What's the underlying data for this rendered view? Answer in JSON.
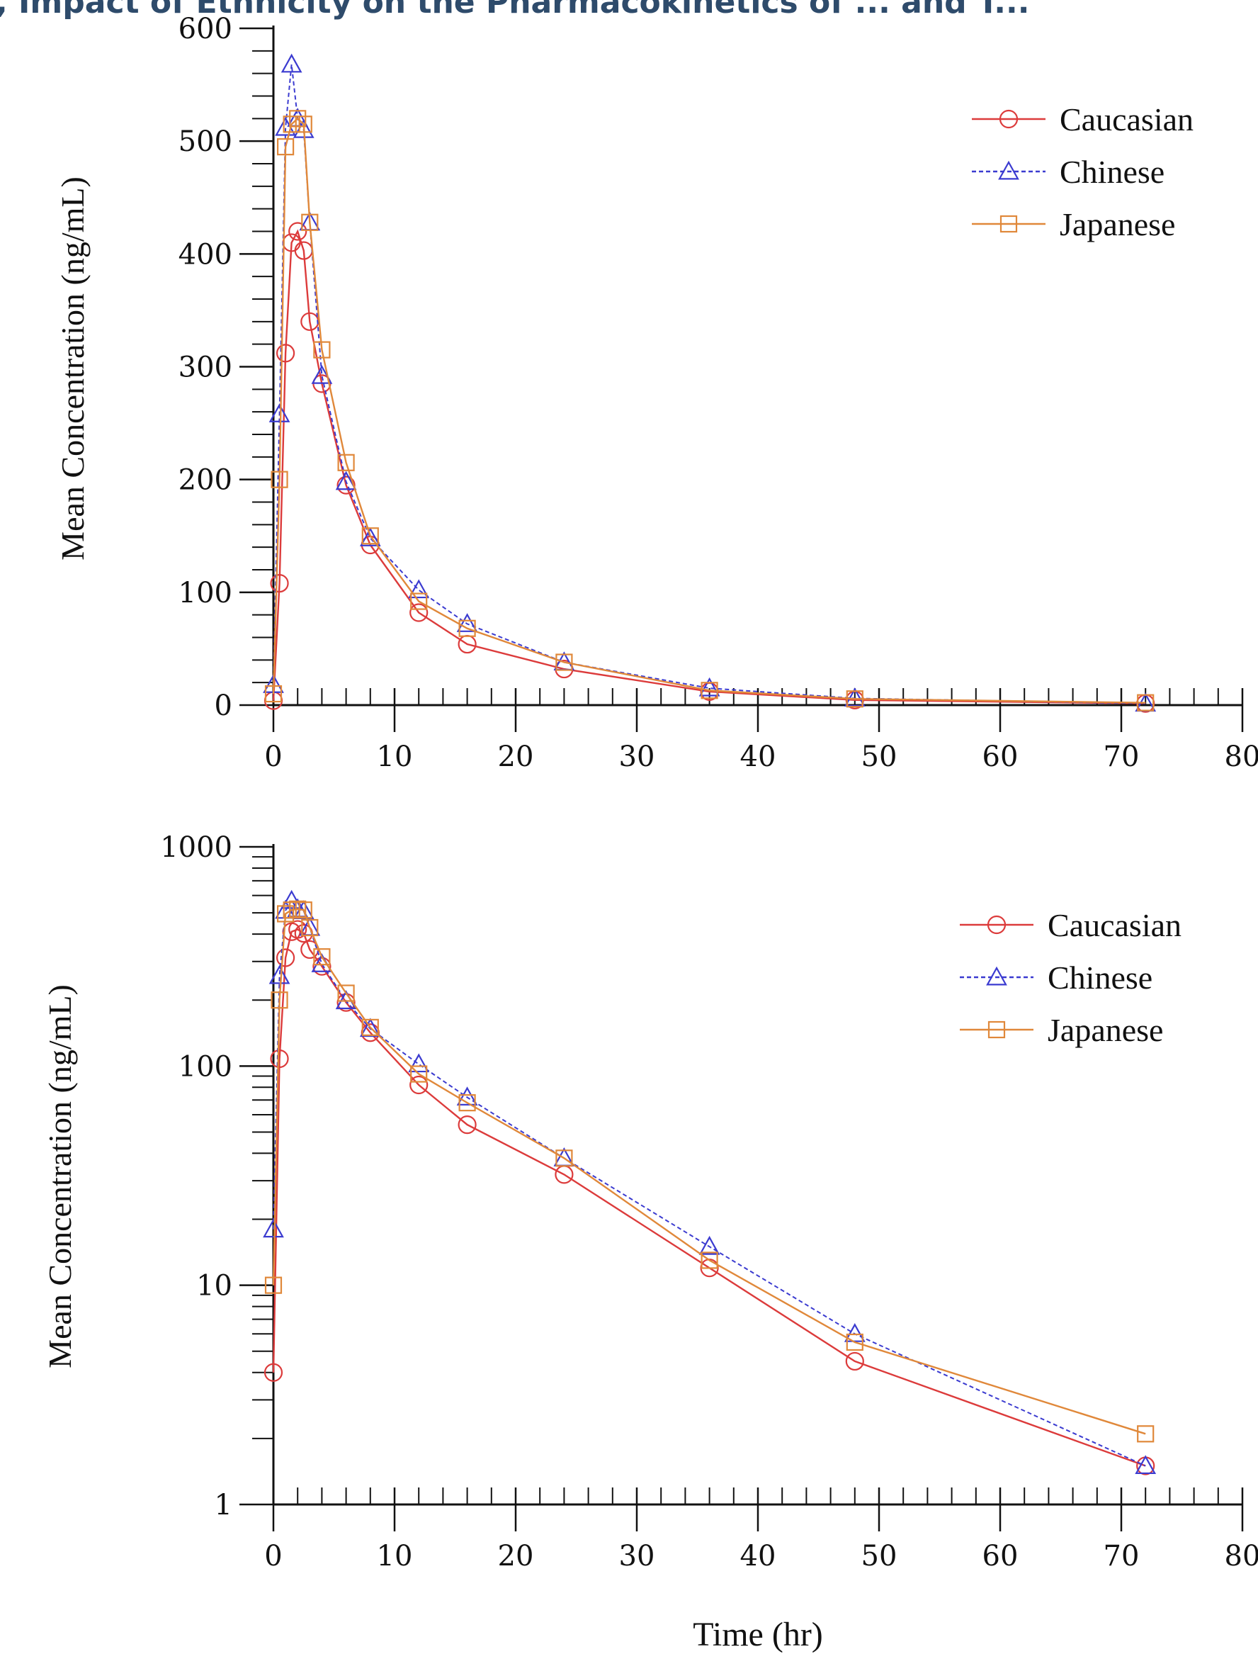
{
  "figure": {
    "partial_title": ", Impact of Ethnicity on the Pharmacokinetics of ... and T...",
    "shared_xlabel": "Time (hr)"
  },
  "colors": {
    "caucasian": "#dc3b3b",
    "chinese": "#3b3bd0",
    "japanese": "#e0883a",
    "axis": "#111111"
  },
  "chart_data": [
    {
      "type": "line",
      "name": "linear-panel",
      "xlabel": "",
      "ylabel": "Mean Concentration (ng/mL)",
      "xlim": [
        0,
        80
      ],
      "ylim": [
        0,
        600
      ],
      "yscale": "linear",
      "x_ticks": [
        0,
        10,
        20,
        30,
        40,
        50,
        60,
        70,
        80
      ],
      "x_tick_labels": [
        "0",
        "10",
        "20",
        "30",
        "40",
        "50",
        "60",
        "70",
        "80"
      ],
      "y_ticks": [
        0,
        100,
        200,
        300,
        400,
        500,
        600
      ],
      "y_tick_labels": [
        "0",
        "100",
        "200",
        "300",
        "400",
        "500",
        "600"
      ],
      "legend_position": "top-right",
      "series": [
        {
          "name": "Caucasian",
          "marker": "circle",
          "line": "solid",
          "x": [
            0,
            0.5,
            1,
            1.5,
            2,
            2.5,
            3,
            4,
            6,
            8,
            12,
            16,
            24,
            36,
            48,
            72
          ],
          "y": [
            4,
            108,
            312,
            410,
            420,
            403,
            340,
            285,
            195,
            142,
            82,
            54,
            32,
            12,
            4.5,
            1.5
          ]
        },
        {
          "name": "Chinese",
          "marker": "triangle",
          "line": "dashed",
          "x": [
            0,
            0.5,
            1,
            1.5,
            2,
            2.5,
            3,
            4,
            6,
            8,
            12,
            16,
            24,
            36,
            48,
            72
          ],
          "y": [
            18,
            258,
            512,
            568,
            520,
            510,
            428,
            292,
            198,
            148,
            102,
            72,
            38,
            15,
            6,
            1.5
          ]
        },
        {
          "name": "Japanese",
          "marker": "square",
          "line": "solid",
          "x": [
            0,
            0.5,
            1,
            1.5,
            2,
            2.5,
            3,
            4,
            6,
            8,
            12,
            16,
            24,
            36,
            48,
            72
          ],
          "y": [
            10,
            200,
            495,
            515,
            520,
            515,
            428,
            315,
            215,
            150,
            92,
            68,
            38,
            13,
            5.5,
            2.1
          ]
        }
      ]
    },
    {
      "type": "line",
      "name": "log-panel",
      "xlabel": "Time (hr)",
      "ylabel": "Mean Concentration (ng/mL)",
      "xlim": [
        0,
        80
      ],
      "ylim": [
        1,
        1000
      ],
      "yscale": "log",
      "x_ticks": [
        0,
        10,
        20,
        30,
        40,
        50,
        60,
        70,
        80
      ],
      "x_tick_labels": [
        "0",
        "10",
        "20",
        "30",
        "40",
        "50",
        "60",
        "70",
        "80"
      ],
      "y_ticks": [
        1,
        10,
        100,
        1000
      ],
      "y_tick_labels": [
        "1",
        "10",
        "100",
        "1000"
      ],
      "legend_position": "top-right",
      "series": [
        {
          "name": "Caucasian",
          "marker": "circle",
          "line": "solid",
          "x": [
            0,
            0.5,
            1,
            1.5,
            2,
            2.5,
            3,
            4,
            6,
            8,
            12,
            16,
            24,
            36,
            48,
            72
          ],
          "y": [
            4,
            108,
            312,
            410,
            420,
            403,
            340,
            285,
            195,
            142,
            82,
            54,
            32,
            12,
            4.5,
            1.5
          ]
        },
        {
          "name": "Chinese",
          "marker": "triangle",
          "line": "dashed",
          "x": [
            0,
            0.5,
            1,
            1.5,
            2,
            2.5,
            3,
            4,
            6,
            8,
            12,
            16,
            24,
            36,
            48,
            72
          ],
          "y": [
            18,
            258,
            512,
            568,
            520,
            510,
            428,
            292,
            198,
            148,
            102,
            72,
            38,
            15,
            6,
            1.5
          ]
        },
        {
          "name": "Japanese",
          "marker": "square",
          "line": "solid",
          "x": [
            0,
            0.5,
            1,
            1.5,
            2,
            2.5,
            3,
            4,
            6,
            8,
            12,
            16,
            24,
            36,
            48,
            72
          ],
          "y": [
            10,
            200,
            495,
            515,
            520,
            515,
            428,
            315,
            215,
            150,
            92,
            68,
            38,
            13,
            5.5,
            2.1
          ]
        }
      ]
    }
  ]
}
